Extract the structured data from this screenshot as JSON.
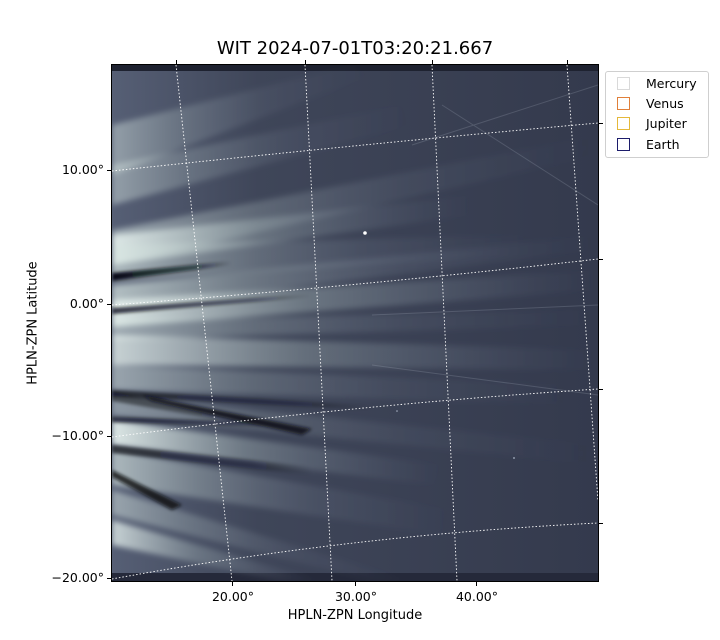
{
  "figure": {
    "title": "WIT 2024-07-01T03:20:21.667",
    "xlabel": "HPLN-ZPN Longitude",
    "ylabel": "HPLN-ZPN Latitude",
    "xticks": [
      "20.00°",
      "30.00°",
      "40.00°"
    ],
    "yticks": [
      "10.00°",
      "0.00°",
      "−10.00°",
      "−20.00°"
    ]
  },
  "legend": {
    "items": [
      {
        "label": "Mercury",
        "color": "#d9d9d9"
      },
      {
        "label": "Venus",
        "color": "#e0803a"
      },
      {
        "label": "Jupiter",
        "color": "#e5b83b"
      },
      {
        "label": "Earth",
        "color": "#1c1c6b"
      }
    ]
  },
  "colors": {
    "background": "#2e3346",
    "streamer_bright": "#d8e6e2",
    "streamer_dark": "#0d0f16",
    "grid": "#ffffff"
  }
}
